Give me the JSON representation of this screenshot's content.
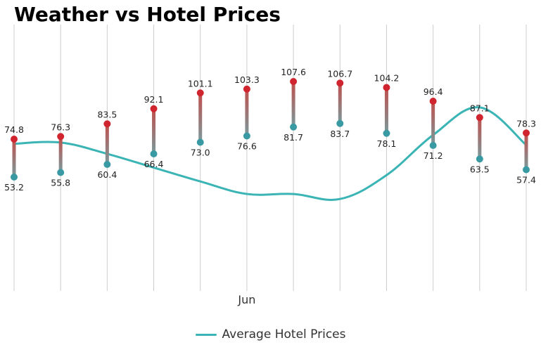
{
  "title": "Weather vs Hotel Prices",
  "chart_data": {
    "type": "range+line",
    "x_tick_label": "Jun",
    "x_tick_index": 5,
    "categories": [
      "",
      "",
      "",
      "",
      "",
      "",
      "",
      "",
      "",
      "",
      "",
      ""
    ],
    "temperature_range": {
      "high": [
        74.8,
        76.3,
        83.5,
        92.1,
        101.1,
        103.3,
        107.6,
        106.7,
        104.2,
        96.4,
        87.1,
        78.3
      ],
      "low": [
        53.2,
        55.8,
        60.4,
        66.4,
        73.0,
        76.6,
        81.7,
        83.7,
        78.1,
        71.2,
        63.5,
        57.4
      ],
      "high_color": "#d0242e",
      "low_color": "#3a9aa3",
      "range_color": "#8a8a8a",
      "label_format": "one-decimal"
    },
    "hotel_prices": {
      "name": "Average Hotel Prices",
      "values": [
        65,
        66,
        57,
        46,
        35,
        25,
        25,
        21,
        40,
        72,
        94,
        64
      ],
      "color": "#3ab4b4"
    },
    "temp_ylim": [
      -10,
      140
    ],
    "price_ylim": [
      -50,
      160
    ],
    "grid": "vertical",
    "legend_position": "bottom-center"
  },
  "legend": {
    "label": "Average Hotel Prices"
  }
}
